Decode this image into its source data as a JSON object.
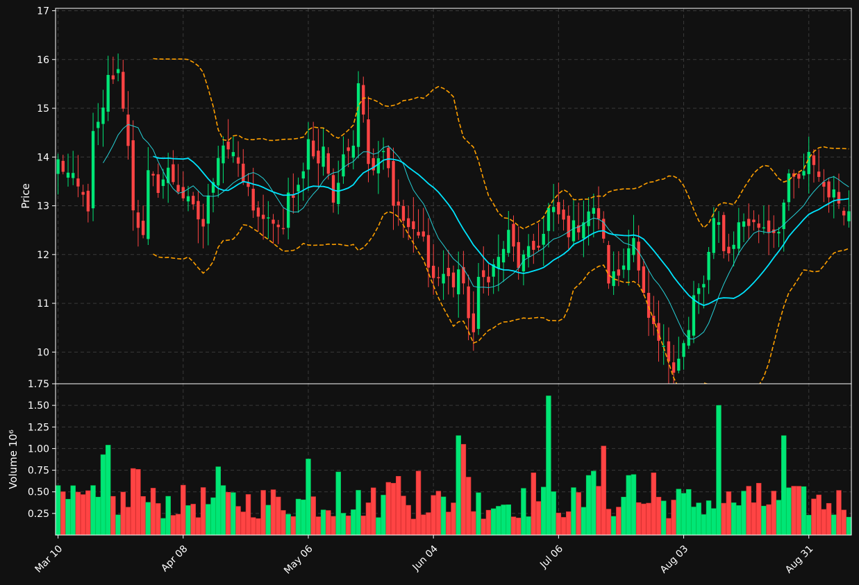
{
  "theme": {
    "background": "#111111",
    "axis": "#ffffff",
    "grid": "#3a3a3a",
    "up": "#00e676",
    "down": "#ff4444",
    "up_outline": "#00c853",
    "down_outline": "#d32f2f",
    "ma_fast": "#26d0d6",
    "ma_slow": "#00e5ff",
    "bands": "#ffa000"
  },
  "chart_data": [
    {
      "type": "candlestick",
      "panel": "price",
      "ylabel": "Price",
      "ylim": [
        9.35,
        17.05
      ],
      "yticks": [
        10,
        11,
        12,
        13,
        14,
        15,
        16,
        17
      ],
      "grid": true,
      "x_tick_labels": [
        {
          "index": 0,
          "label": "Mar 10"
        },
        {
          "index": 25,
          "label": "Apr 08"
        },
        {
          "index": 50,
          "label": "May 06"
        },
        {
          "index": 75,
          "label": "Jun 04"
        },
        {
          "index": 100,
          "label": "Jul 06"
        },
        {
          "index": 125,
          "label": "Aug 03"
        },
        {
          "index": 150,
          "label": "Aug 31"
        }
      ],
      "x_range": [
        -0.5,
        158.5
      ],
      "anchors": [
        [
          0,
          13.9
        ],
        [
          3,
          13.5
        ],
        [
          6,
          13.0
        ],
        [
          7,
          14.4
        ],
        [
          9,
          14.9
        ],
        [
          10,
          15.6
        ],
        [
          12,
          15.7
        ],
        [
          13,
          15.1
        ],
        [
          14,
          14.2
        ],
        [
          15,
          13.0
        ],
        [
          17,
          12.3
        ],
        [
          18,
          13.6
        ],
        [
          20,
          13.4
        ],
        [
          22,
          13.7
        ],
        [
          25,
          13.2
        ],
        [
          27,
          12.9
        ],
        [
          29,
          12.6
        ],
        [
          30,
          13.1
        ],
        [
          32,
          14.1
        ],
        [
          33,
          14.3
        ],
        [
          35,
          14.1
        ],
        [
          36,
          13.7
        ],
        [
          38,
          13.3
        ],
        [
          39,
          13.0
        ],
        [
          41,
          12.6
        ],
        [
          43,
          12.7
        ],
        [
          45,
          12.4
        ],
        [
          46,
          13.2
        ],
        [
          48,
          13.4
        ],
        [
          50,
          14.3
        ],
        [
          52,
          13.8
        ],
        [
          53,
          14.3
        ],
        [
          55,
          13.1
        ],
        [
          57,
          13.9
        ],
        [
          59,
          14.4
        ],
        [
          60,
          15.6
        ],
        [
          61,
          15.0
        ],
        [
          62,
          13.8
        ],
        [
          63,
          13.9
        ],
        [
          65,
          14.2
        ],
        [
          66,
          13.8
        ],
        [
          67,
          13.1
        ],
        [
          69,
          12.7
        ],
        [
          71,
          12.4
        ],
        [
          73,
          12.3
        ],
        [
          75,
          11.5
        ],
        [
          77,
          11.6
        ],
        [
          79,
          11.4
        ],
        [
          80,
          11.7
        ],
        [
          82,
          10.8
        ],
        [
          83,
          10.4
        ],
        [
          84,
          11.4
        ],
        [
          86,
          11.6
        ],
        [
          88,
          11.9
        ],
        [
          90,
          12.4
        ],
        [
          92,
          11.8
        ],
        [
          95,
          12.1
        ],
        [
          97,
          12.4
        ],
        [
          98,
          12.9
        ],
        [
          100,
          12.8
        ],
        [
          102,
          12.5
        ],
        [
          104,
          12.6
        ],
        [
          106,
          12.9
        ],
        [
          108,
          12.8
        ],
        [
          109,
          12.2
        ],
        [
          110,
          11.5
        ],
        [
          112,
          11.6
        ],
        [
          113,
          11.8
        ],
        [
          114,
          12.3
        ],
        [
          115,
          12.4
        ],
        [
          116,
          11.6
        ],
        [
          117,
          11.1
        ],
        [
          118,
          10.6
        ],
        [
          120,
          10.2
        ],
        [
          121,
          10.0
        ],
        [
          123,
          9.75
        ],
        [
          124,
          9.95
        ],
        [
          126,
          10.4
        ],
        [
          127,
          11.1
        ],
        [
          129,
          11.4
        ],
        [
          130,
          12.0
        ],
        [
          131,
          12.6
        ],
        [
          132,
          12.6
        ],
        [
          133,
          12.2
        ],
        [
          134,
          12.0
        ],
        [
          136,
          12.6
        ],
        [
          137,
          12.7
        ],
        [
          139,
          12.6
        ],
        [
          141,
          12.6
        ],
        [
          143,
          12.5
        ],
        [
          144,
          12.6
        ],
        [
          146,
          13.5
        ],
        [
          148,
          13.55
        ],
        [
          149,
          13.6
        ],
        [
          150,
          14.0
        ],
        [
          151,
          13.9
        ],
        [
          152,
          13.6
        ],
        [
          153,
          13.4
        ],
        [
          155,
          13.2
        ],
        [
          156,
          13.1
        ],
        [
          158,
          12.85
        ]
      ],
      "series": [
        {
          "name": "SMA 10",
          "role": "ma_fast",
          "window": 10
        },
        {
          "name": "SMA 20",
          "role": "ma_slow",
          "window": 20
        },
        {
          "name": "Bollinger upper",
          "role": "band_upper",
          "window": 20,
          "k": 2
        },
        {
          "name": "Bollinger lower",
          "role": "band_lower",
          "window": 20,
          "k": 2
        }
      ]
    },
    {
      "type": "bar",
      "panel": "volume",
      "ylabel": "Volume  10⁶",
      "ylim": [
        0.0,
        1.75
      ],
      "yticks": [
        0.25,
        0.5,
        0.75,
        1.0,
        1.25,
        1.5,
        1.75
      ],
      "grid": true,
      "peaks": [
        [
          9,
          0.93
        ],
        [
          10,
          1.04
        ],
        [
          15,
          0.77
        ],
        [
          16,
          0.76
        ],
        [
          32,
          0.79
        ],
        [
          50,
          0.88
        ],
        [
          56,
          0.73
        ],
        [
          66,
          0.61
        ],
        [
          67,
          0.6
        ],
        [
          68,
          0.68
        ],
        [
          72,
          0.74
        ],
        [
          80,
          1.15
        ],
        [
          81,
          1.05
        ],
        [
          82,
          0.67
        ],
        [
          95,
          0.72
        ],
        [
          98,
          1.61
        ],
        [
          106,
          0.69
        ],
        [
          107,
          0.74
        ],
        [
          109,
          1.03
        ],
        [
          114,
          0.69
        ],
        [
          115,
          0.7
        ],
        [
          119,
          0.72
        ],
        [
          132,
          1.5
        ],
        [
          140,
          0.6
        ],
        [
          145,
          1.15
        ],
        [
          149,
          0.56
        ]
      ],
      "base": [
        0.18,
        0.58
      ]
    }
  ]
}
